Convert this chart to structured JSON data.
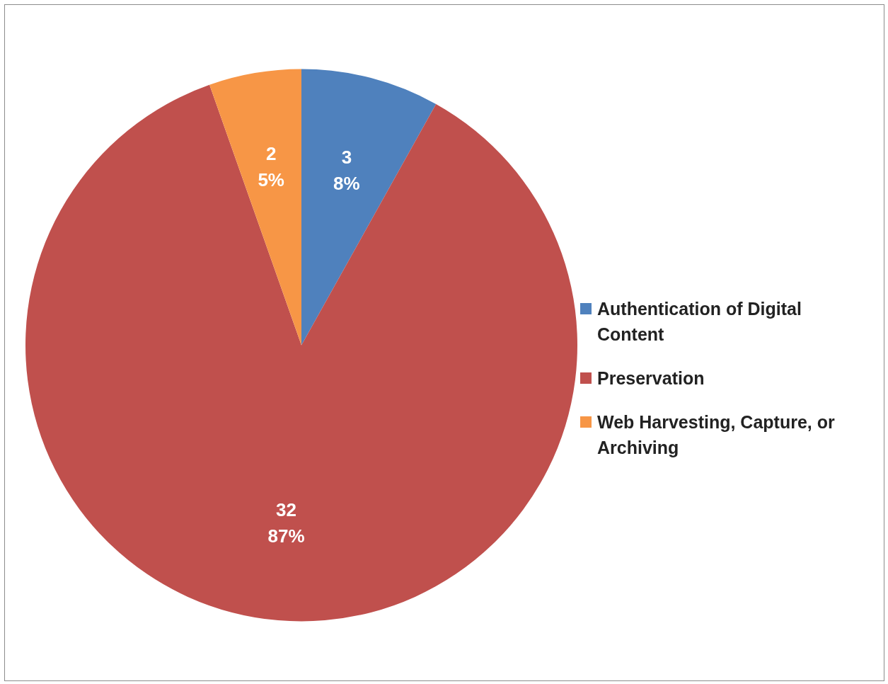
{
  "chart_data": {
    "type": "pie",
    "categories": [
      "Authentication of Digital Content",
      "Preservation",
      "Web Harvesting, Capture, or Archiving"
    ],
    "values": [
      3,
      32,
      2
    ],
    "colors": [
      "#4f81bd",
      "#c0504d",
      "#f79646"
    ],
    "value_labels": [
      "3\n8%",
      "32\n87%",
      "2\n5%"
    ],
    "legend": "right"
  }
}
